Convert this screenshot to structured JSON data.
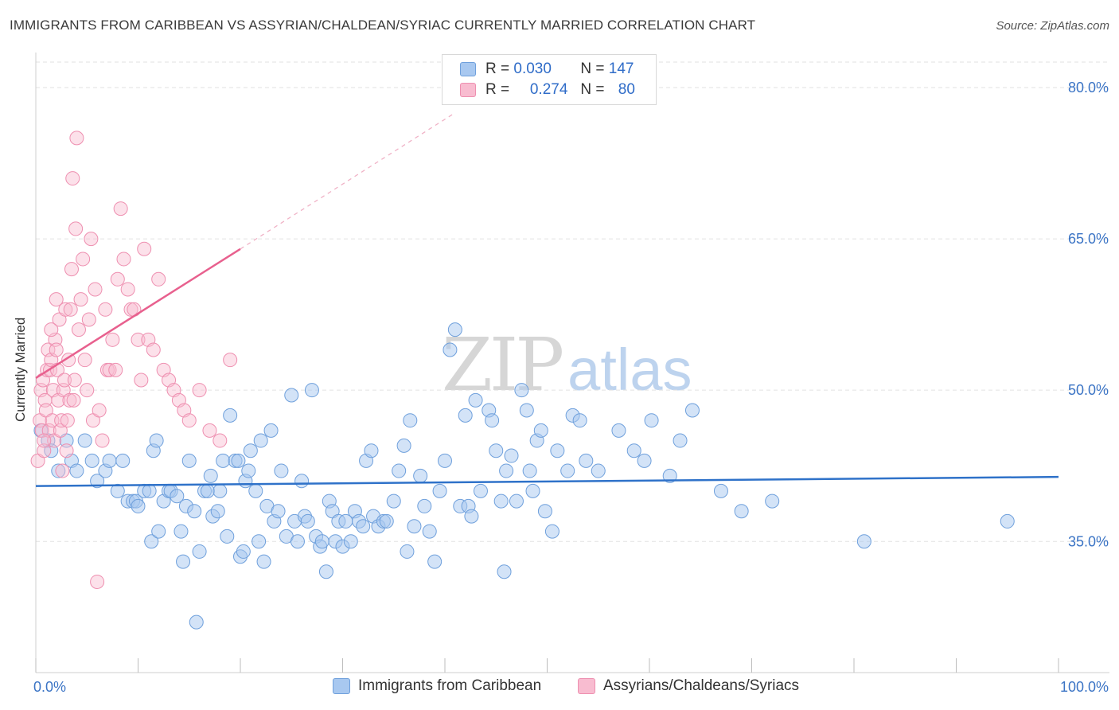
{
  "title": "IMMIGRANTS FROM CARIBBEAN VS ASSYRIAN/CHALDEAN/SYRIAC CURRENTLY MARRIED CORRELATION CHART",
  "source": "Source: ZipAtlas.com",
  "watermark": {
    "part1": "ZIP",
    "part2": "atlas"
  },
  "legend": {
    "rows": [
      {
        "r_label": "R =",
        "r_value": "0.030",
        "n_label": "N =",
        "n_value": "147"
      },
      {
        "r_label": "R =",
        "r_value": "0.274",
        "n_label": "N =",
        "n_value": "80"
      }
    ]
  },
  "colors": {
    "blue_fill": "#a8c8f0",
    "blue_stroke": "#6fa0dc",
    "blue_line": "#2f72c9",
    "pink_fill": "#f8bcd0",
    "pink_stroke": "#ee8fb0",
    "pink_line": "#e8608e",
    "tick_label": "#3b74c5",
    "grid": "#e2e2e2"
  },
  "chart_data": {
    "type": "scatter",
    "title": "IMMIGRANTS FROM CARIBBEAN VS ASSYRIAN/CHALDEAN/SYRIAC CURRENTLY MARRIED CORRELATION CHART",
    "xlabel": "",
    "ylabel": "Currently Married",
    "xlim": [
      0,
      100
    ],
    "ylim": [
      22,
      83
    ],
    "x_tick_labels": [
      "0.0%",
      "100.0%"
    ],
    "y_ticks": [
      35,
      50,
      65,
      80
    ],
    "y_tick_labels": [
      "35.0%",
      "50.0%",
      "65.0%",
      "80.0%"
    ],
    "series": [
      {
        "name": "Immigrants from Caribbean",
        "r": 0.03,
        "n": 147,
        "trend": {
          "x0": 0,
          "y0": 40.5,
          "x1": 100,
          "y1": 41.4
        },
        "points": [
          [
            0.5,
            46
          ],
          [
            1.2,
            45
          ],
          [
            1.5,
            44
          ],
          [
            2.2,
            42
          ],
          [
            3,
            45
          ],
          [
            3.5,
            43
          ],
          [
            4,
            42
          ],
          [
            4.8,
            45
          ],
          [
            5.5,
            43
          ],
          [
            6,
            41
          ],
          [
            6.8,
            42
          ],
          [
            7.2,
            43
          ],
          [
            8,
            40
          ],
          [
            8.5,
            43
          ],
          [
            9,
            39
          ],
          [
            9.5,
            39
          ],
          [
            9.8,
            39
          ],
          [
            10,
            38.5
          ],
          [
            10.6,
            40
          ],
          [
            11.1,
            40
          ],
          [
            11.3,
            35
          ],
          [
            11.5,
            44
          ],
          [
            11.8,
            45
          ],
          [
            12,
            36
          ],
          [
            12.5,
            39
          ],
          [
            13,
            40
          ],
          [
            13.2,
            40
          ],
          [
            13.8,
            39.5
          ],
          [
            14.2,
            36
          ],
          [
            14.4,
            33
          ],
          [
            14.7,
            38.5
          ],
          [
            15,
            43
          ],
          [
            15.5,
            38
          ],
          [
            15.7,
            27
          ],
          [
            16,
            34
          ],
          [
            16.5,
            40
          ],
          [
            16.8,
            40
          ],
          [
            17.1,
            41.5
          ],
          [
            17.3,
            37.5
          ],
          [
            17.8,
            38
          ],
          [
            18,
            40
          ],
          [
            18.3,
            43
          ],
          [
            18.7,
            35.5
          ],
          [
            19,
            47.5
          ],
          [
            19.5,
            43
          ],
          [
            19.8,
            43
          ],
          [
            20,
            33.5
          ],
          [
            20.3,
            34
          ],
          [
            20.5,
            41
          ],
          [
            20.8,
            42
          ],
          [
            21,
            44
          ],
          [
            21.5,
            40
          ],
          [
            21.8,
            35
          ],
          [
            22,
            45
          ],
          [
            22.3,
            33
          ],
          [
            22.6,
            38.5
          ],
          [
            23,
            46
          ],
          [
            23.3,
            37
          ],
          [
            23.7,
            38
          ],
          [
            24,
            42
          ],
          [
            24.5,
            35.5
          ],
          [
            25,
            49.5
          ],
          [
            25.3,
            37
          ],
          [
            25.6,
            35
          ],
          [
            26,
            41
          ],
          [
            26.3,
            37.5
          ],
          [
            26.6,
            37
          ],
          [
            27,
            50
          ],
          [
            27.4,
            35.5
          ],
          [
            27.8,
            34.5
          ],
          [
            28,
            35
          ],
          [
            28.4,
            32
          ],
          [
            28.7,
            39
          ],
          [
            29,
            38
          ],
          [
            29.3,
            35
          ],
          [
            29.6,
            37
          ],
          [
            30,
            34.5
          ],
          [
            30.3,
            37
          ],
          [
            30.8,
            35
          ],
          [
            31.2,
            38
          ],
          [
            31.6,
            37
          ],
          [
            32,
            36.5
          ],
          [
            32.3,
            43
          ],
          [
            32.8,
            44
          ],
          [
            33,
            37.5
          ],
          [
            33.5,
            36.5
          ],
          [
            34,
            37
          ],
          [
            34.3,
            37
          ],
          [
            35,
            39
          ],
          [
            35.5,
            42
          ],
          [
            36,
            44.5
          ],
          [
            36.3,
            34
          ],
          [
            36.6,
            47
          ],
          [
            37,
            36.5
          ],
          [
            37.6,
            41.5
          ],
          [
            38,
            38.5
          ],
          [
            38.5,
            36
          ],
          [
            39,
            33
          ],
          [
            39.5,
            40
          ],
          [
            40,
            43
          ],
          [
            40.5,
            54
          ],
          [
            41,
            56
          ],
          [
            41.5,
            38.5
          ],
          [
            42,
            47.5
          ],
          [
            42.3,
            38.5
          ],
          [
            42.6,
            37.5
          ],
          [
            43,
            49
          ],
          [
            43.5,
            40
          ],
          [
            44.3,
            48
          ],
          [
            44.6,
            47
          ],
          [
            45,
            44
          ],
          [
            45.5,
            39
          ],
          [
            45.8,
            32
          ],
          [
            46,
            42
          ],
          [
            46.5,
            43.5
          ],
          [
            47,
            39
          ],
          [
            47.5,
            50
          ],
          [
            48,
            48
          ],
          [
            48.3,
            42
          ],
          [
            48.6,
            40
          ],
          [
            49,
            45
          ],
          [
            49.4,
            46
          ],
          [
            49.8,
            38
          ],
          [
            50.5,
            36
          ],
          [
            51,
            44
          ],
          [
            52,
            42
          ],
          [
            52.5,
            47.5
          ],
          [
            53.2,
            47
          ],
          [
            53.8,
            43
          ],
          [
            55,
            42
          ],
          [
            57,
            46
          ],
          [
            58.5,
            44
          ],
          [
            59.5,
            43
          ],
          [
            60.2,
            47
          ],
          [
            62,
            41.5
          ],
          [
            63,
            45
          ],
          [
            64.2,
            48
          ],
          [
            67,
            40
          ],
          [
            69,
            38
          ],
          [
            72,
            39
          ],
          [
            81,
            35
          ],
          [
            95,
            37
          ]
        ]
      },
      {
        "name": "Assyrians/Chaldeans/Syriacs",
        "r": 0.274,
        "n": 80,
        "trend": {
          "x0": 0,
          "y0": 51.2,
          "x1": 20,
          "y1": 64
        },
        "trend_dashed": {
          "x0": 20,
          "y0": 64,
          "x1": 41,
          "y1": 77.5
        },
        "points": [
          [
            0.2,
            43
          ],
          [
            0.4,
            47
          ],
          [
            0.5,
            50
          ],
          [
            0.6,
            46
          ],
          [
            0.7,
            51
          ],
          [
            0.8,
            44
          ],
          [
            0.9,
            49
          ],
          [
            1.0,
            48
          ],
          [
            1.1,
            52
          ],
          [
            1.2,
            54
          ],
          [
            1.3,
            46
          ],
          [
            1.4,
            52
          ],
          [
            1.5,
            53
          ],
          [
            1.6,
            47
          ],
          [
            1.7,
            50
          ],
          [
            1.8,
            45
          ],
          [
            1.9,
            55
          ],
          [
            2.0,
            54
          ],
          [
            2.1,
            52
          ],
          [
            2.2,
            49
          ],
          [
            2.3,
            57
          ],
          [
            2.4,
            46
          ],
          [
            2.5,
            47
          ],
          [
            2.6,
            42
          ],
          [
            2.7,
            50
          ],
          [
            2.8,
            51
          ],
          [
            2.9,
            58
          ],
          [
            3.0,
            44
          ],
          [
            3.1,
            47
          ],
          [
            3.2,
            53
          ],
          [
            3.3,
            49
          ],
          [
            3.4,
            58
          ],
          [
            3.5,
            62
          ],
          [
            3.6,
            71
          ],
          [
            3.7,
            49
          ],
          [
            3.8,
            51
          ],
          [
            3.9,
            66
          ],
          [
            4.0,
            75
          ],
          [
            4.2,
            56
          ],
          [
            4.4,
            59
          ],
          [
            4.6,
            63
          ],
          [
            4.8,
            53
          ],
          [
            5.0,
            50
          ],
          [
            5.2,
            57
          ],
          [
            5.4,
            65
          ],
          [
            5.6,
            47
          ],
          [
            5.8,
            60
          ],
          [
            6.0,
            31
          ],
          [
            6.2,
            48
          ],
          [
            6.5,
            45
          ],
          [
            6.8,
            58
          ],
          [
            7.0,
            52
          ],
          [
            7.2,
            52
          ],
          [
            7.5,
            55
          ],
          [
            7.8,
            52
          ],
          [
            8.0,
            61
          ],
          [
            8.3,
            68
          ],
          [
            8.6,
            63
          ],
          [
            9.0,
            60
          ],
          [
            9.3,
            58
          ],
          [
            9.6,
            58
          ],
          [
            10.0,
            55
          ],
          [
            10.3,
            51
          ],
          [
            10.6,
            64
          ],
          [
            11.0,
            55
          ],
          [
            11.5,
            54
          ],
          [
            12.0,
            61
          ],
          [
            12.5,
            52
          ],
          [
            13.0,
            51
          ],
          [
            13.5,
            50
          ],
          [
            14.0,
            49
          ],
          [
            14.5,
            48
          ],
          [
            15.0,
            47
          ],
          [
            16.0,
            50
          ],
          [
            17.0,
            46
          ],
          [
            18.0,
            45
          ],
          [
            19.0,
            53
          ],
          [
            1.5,
            56
          ],
          [
            2.0,
            59
          ],
          [
            0.8,
            45
          ]
        ]
      }
    ]
  },
  "bottom_legend": [
    {
      "label": "Immigrants from Caribbean"
    },
    {
      "label": "Assyrians/Chaldeans/Syriacs"
    }
  ]
}
